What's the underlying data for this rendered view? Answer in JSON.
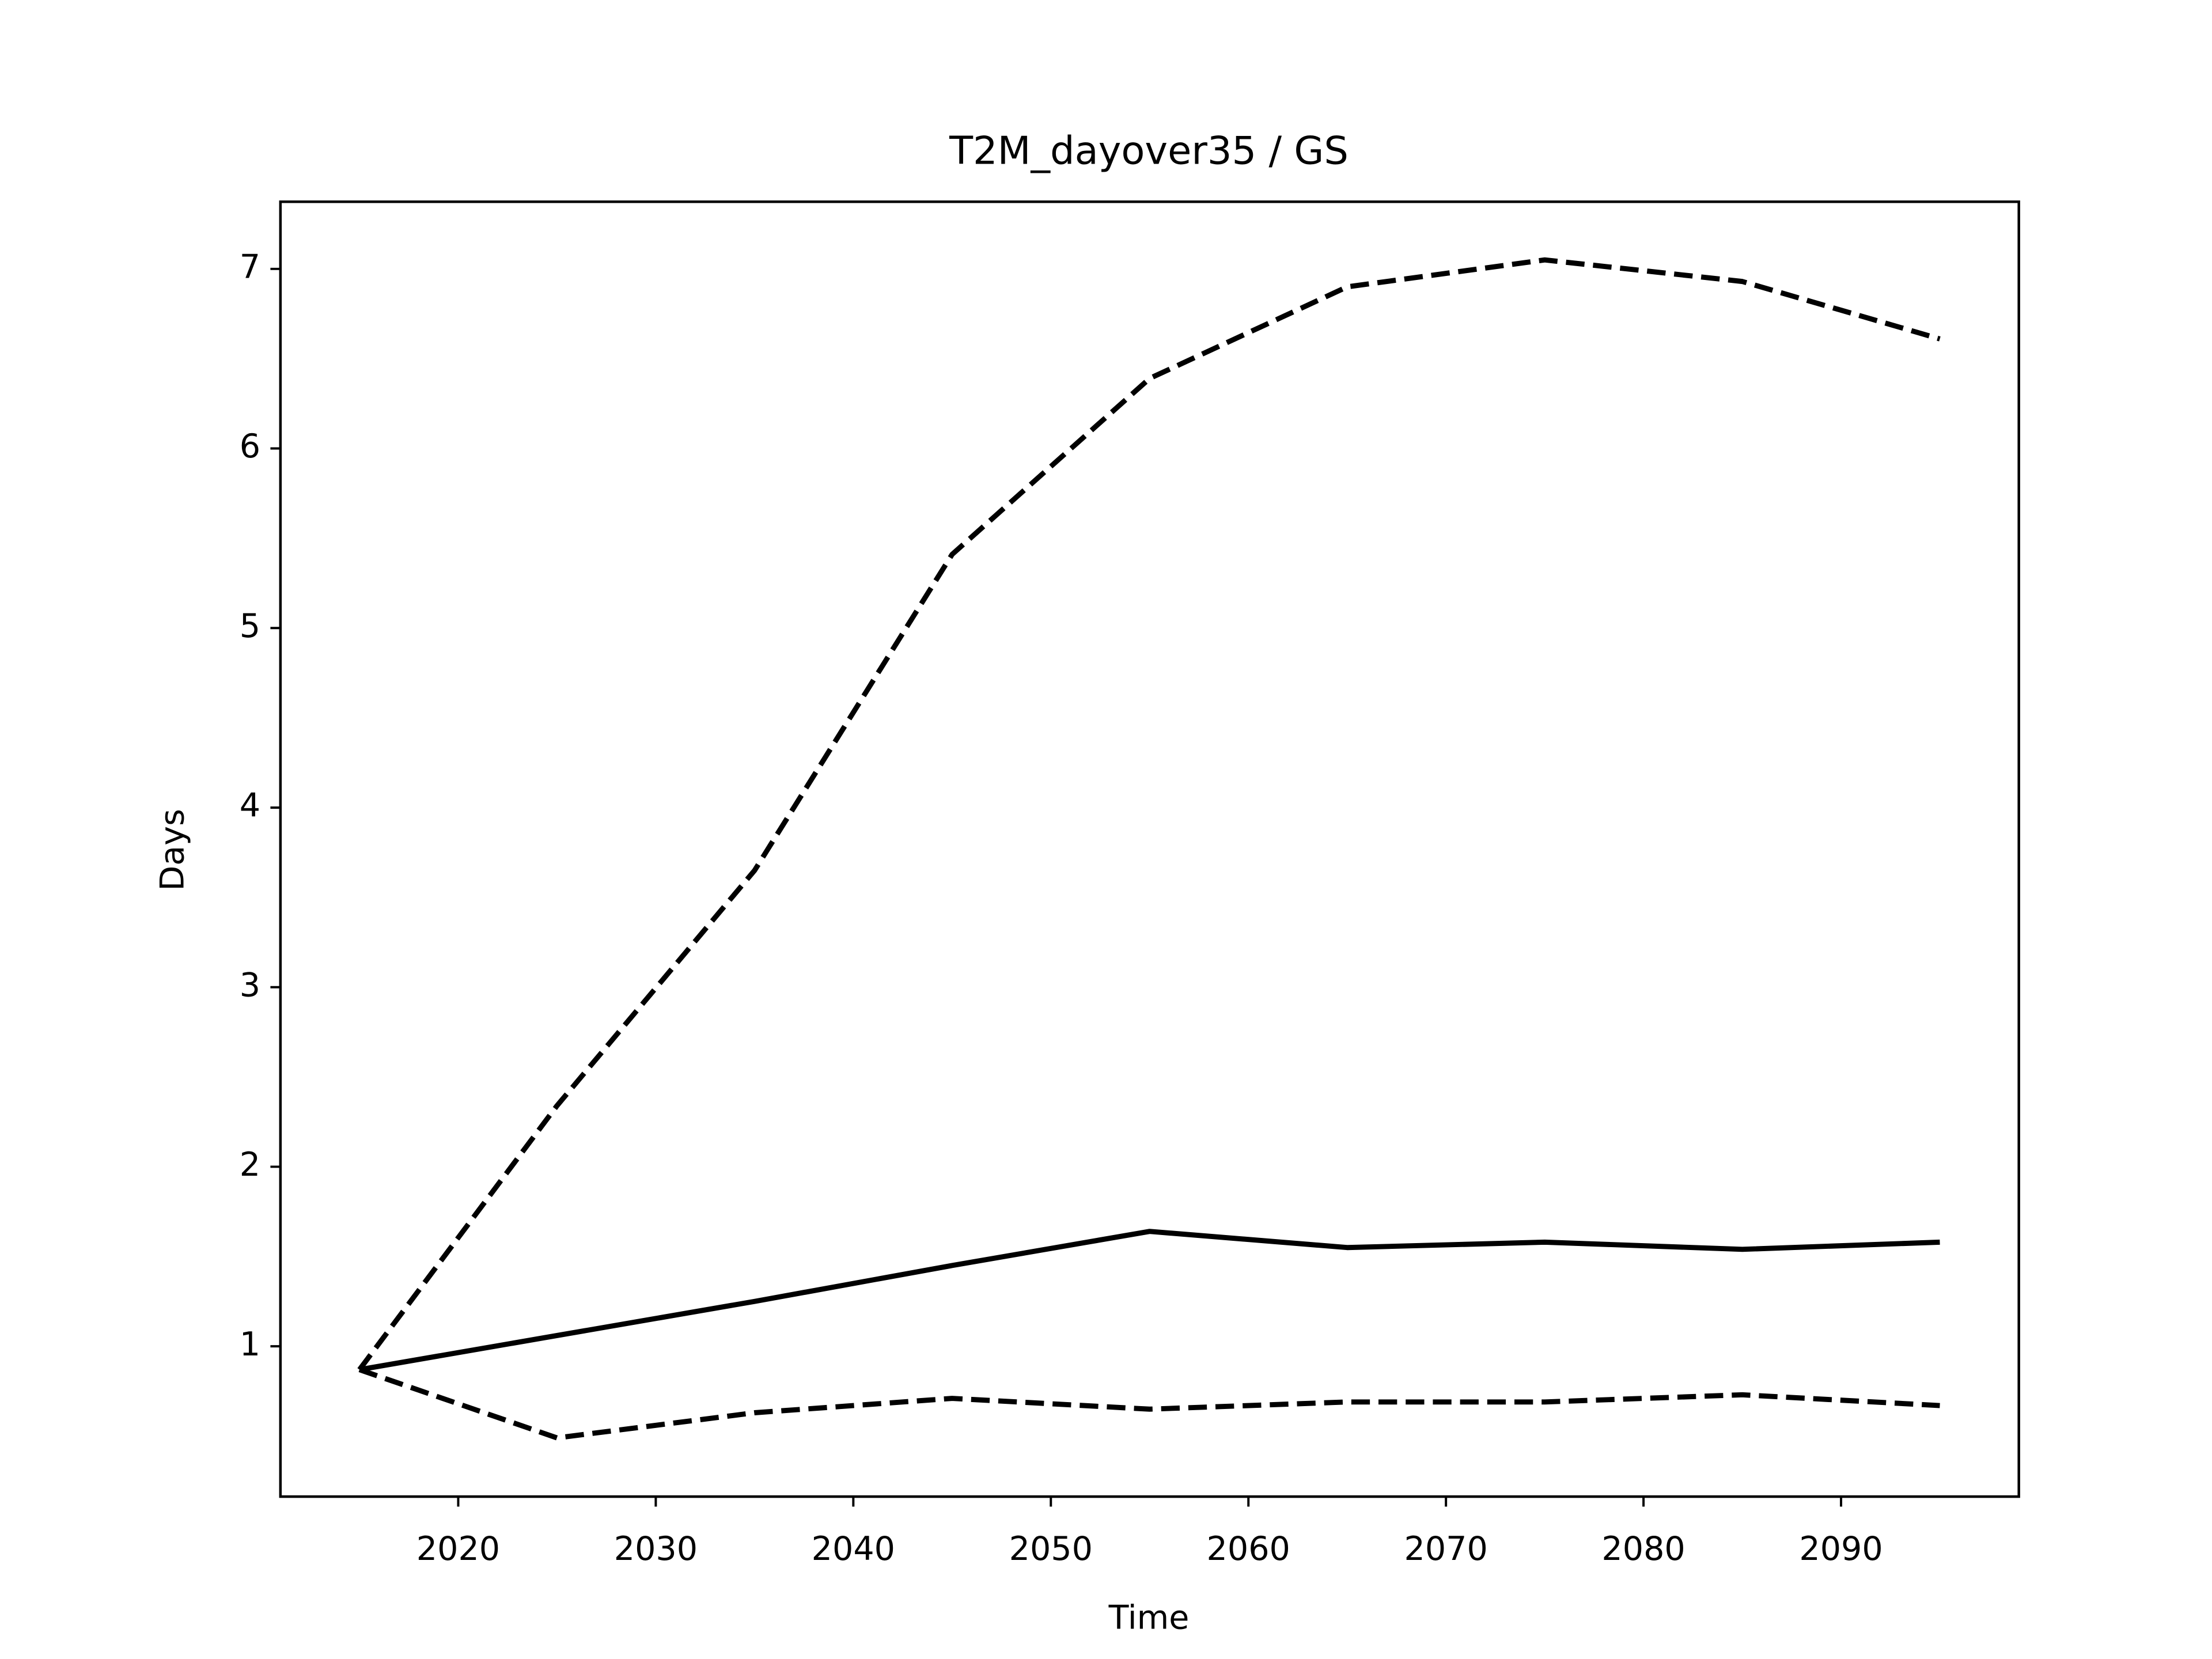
{
  "chart_data": {
    "type": "line",
    "title": "T2M_dayover35 / GS",
    "x_label": "Time",
    "y_label": "Days",
    "x": [
      2015,
      2025,
      2035,
      2045,
      2055,
      2065,
      2075,
      2085,
      2095
    ],
    "series": [
      {
        "color": "#000000",
        "dashed": false,
        "values": [
          0.87,
          1.06,
          1.25,
          1.45,
          1.64,
          1.55,
          1.58,
          1.54,
          1.58
        ]
      },
      {
        "color": "#000000",
        "dashed": true,
        "values": [
          0.87,
          2.34,
          3.65,
          5.41,
          6.39,
          6.9,
          7.05,
          6.93,
          6.61
        ]
      },
      {
        "color": "#000000",
        "dashed": true,
        "values": [
          0.87,
          0.49,
          0.63,
          0.71,
          0.65,
          0.69,
          0.69,
          0.73,
          0.67
        ]
      }
    ],
    "xlim": [
      2011,
      2099
    ],
    "ylim": [
      0.163,
      7.374
    ],
    "xticks": [
      2020,
      2030,
      2040,
      2050,
      2060,
      2070,
      2080,
      2090
    ],
    "yticks": [
      1,
      2,
      3,
      4,
      5,
      6,
      7
    ],
    "grid": false
  }
}
